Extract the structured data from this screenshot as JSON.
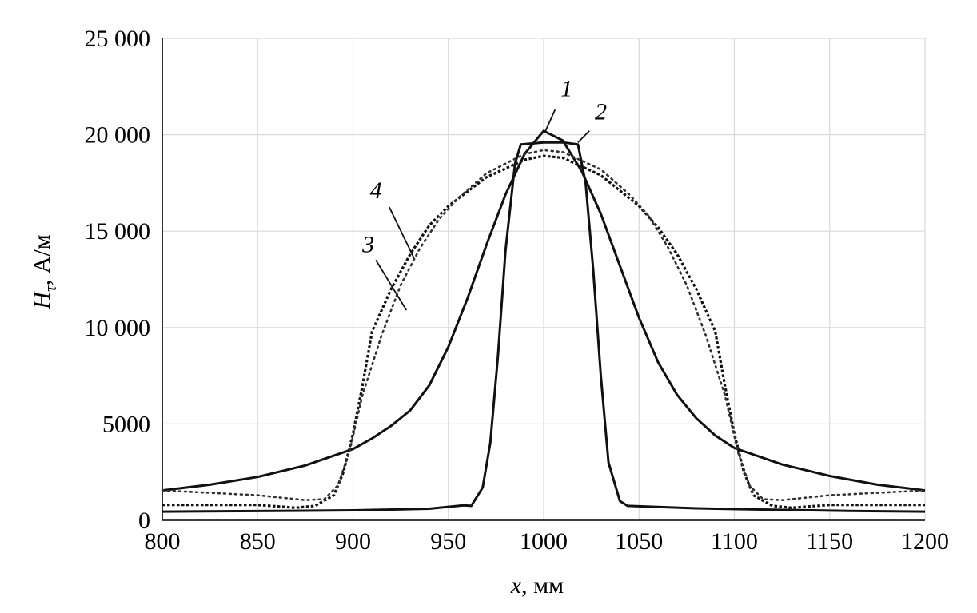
{
  "chart_data": {
    "type": "line",
    "xlabel_var": "x",
    "xlabel_unit": ", мм",
    "ylabel_var": "H",
    "ylabel_sub": "τ",
    "ylabel_unit": ", А/м",
    "xlim": [
      800,
      1200
    ],
    "ylim": [
      0,
      25000
    ],
    "grid": true,
    "x_ticks": [
      800,
      850,
      900,
      950,
      1000,
      1050,
      1100,
      1150,
      1200
    ],
    "y_ticks": [
      0,
      5000,
      10000,
      15000,
      20000,
      25000
    ],
    "x_tick_labels": [
      "800",
      "850",
      "900",
      "950",
      "1000",
      "1050",
      "1100",
      "1150",
      "1200"
    ],
    "y_tick_labels": [
      "0",
      "5000",
      "10 000",
      "15 000",
      "20 000",
      "25 000"
    ],
    "series": [
      {
        "name": "1",
        "x": [
          800,
          825,
          850,
          875,
          900,
          910,
          920,
          930,
          940,
          950,
          960,
          970,
          980,
          990,
          1000,
          1010,
          1020,
          1030,
          1040,
          1050,
          1060,
          1070,
          1080,
          1090,
          1100,
          1125,
          1150,
          1175,
          1200
        ],
        "y": [
          1550,
          1850,
          2250,
          2850,
          3700,
          4250,
          4900,
          5700,
          7000,
          9000,
          11500,
          14300,
          16900,
          19000,
          20200,
          19700,
          18100,
          15900,
          13200,
          10500,
          8200,
          6500,
          5300,
          4400,
          3750,
          2900,
          2300,
          1850,
          1550
        ]
      },
      {
        "name": "2",
        "x": [
          800,
          850,
          900,
          940,
          958,
          962,
          968,
          972,
          976,
          980,
          985,
          988,
          1000,
          1010,
          1018,
          1022,
          1026,
          1030,
          1034,
          1040,
          1044,
          1080,
          1120,
          1160,
          1200
        ],
        "y": [
          450,
          480,
          520,
          600,
          780,
          750,
          1700,
          4000,
          8500,
          14000,
          18500,
          19500,
          19600,
          19600,
          19500,
          17500,
          13000,
          7500,
          3000,
          1000,
          750,
          620,
          550,
          490,
          450
        ]
      },
      {
        "name": "3",
        "x": [
          800,
          850,
          870,
          880,
          890,
          895,
          900,
          905,
          910,
          920,
          930,
          940,
          950,
          970,
          990,
          1000,
          1010,
          1030,
          1050,
          1060,
          1070,
          1080,
          1090,
          1095,
          1100,
          1105,
          1110,
          1120,
          1130,
          1150,
          1200
        ],
        "y": [
          800,
          800,
          650,
          750,
          1300,
          2500,
          4500,
          7000,
          9800,
          12000,
          13800,
          15300,
          16300,
          17800,
          18700,
          18900,
          18800,
          17900,
          16300,
          15200,
          13800,
          12000,
          9800,
          7000,
          4500,
          2500,
          1300,
          750,
          650,
          800,
          800
        ]
      },
      {
        "name": "4",
        "x": [
          800,
          850,
          875,
          885,
          892,
          898,
          905,
          915,
          925,
          935,
          945,
          955,
          970,
          990,
          1000,
          1010,
          1030,
          1045,
          1055,
          1065,
          1075,
          1085,
          1095,
          1102,
          1108,
          1115,
          1125,
          1150,
          1200
        ],
        "y": [
          1550,
          1300,
          1050,
          1100,
          1800,
          3500,
          6500,
          9600,
          12200,
          14100,
          15600,
          16700,
          18000,
          19000,
          19200,
          19100,
          18200,
          16900,
          15800,
          14200,
          12200,
          9600,
          6500,
          3500,
          1800,
          1100,
          1050,
          1300,
          1550
        ]
      }
    ],
    "annotations": [
      {
        "label": "1",
        "text_at": [
          1012,
          22000
        ],
        "line_from": [
          1006,
          21300
        ],
        "line_to": [
          1001,
          20200
        ]
      },
      {
        "label": "2",
        "text_at": [
          1030,
          20800
        ],
        "line_from": [
          1024,
          20200
        ],
        "line_to": [
          1018,
          19600
        ]
      },
      {
        "label": "3",
        "text_at": [
          908,
          13900
        ],
        "line_from": [
          912,
          13500
        ],
        "line_to": [
          928,
          10900
        ]
      },
      {
        "label": "4",
        "text_at": [
          912,
          16700
        ],
        "line_from": [
          919,
          16250
        ],
        "line_to": [
          932,
          13600
        ]
      }
    ]
  }
}
